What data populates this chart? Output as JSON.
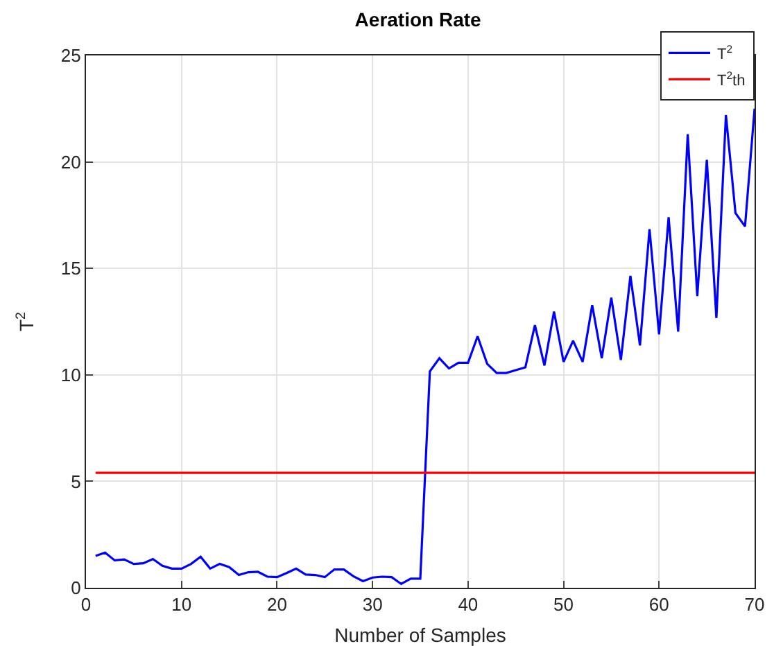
{
  "chart_data": {
    "type": "line",
    "title": "Aeration Rate",
    "xlabel": "Number of Samples",
    "ylabel": "T$^{2}$",
    "x": [
      1,
      2,
      3,
      4,
      5,
      6,
      7,
      8,
      9,
      10,
      11,
      12,
      13,
      14,
      15,
      16,
      17,
      18,
      19,
      20,
      21,
      22,
      23,
      24,
      25,
      26,
      27,
      28,
      29,
      30,
      31,
      32,
      33,
      34,
      35,
      36,
      37,
      38,
      39,
      40,
      41,
      42,
      43,
      44,
      45,
      46,
      47,
      48,
      49,
      50,
      51,
      52,
      53,
      54,
      55,
      56,
      57,
      58,
      59,
      60,
      61,
      62,
      63,
      64,
      65,
      66,
      67,
      68,
      69,
      70
    ],
    "series": [
      {
        "name": "T$^{2}$",
        "color": "#0000ff",
        "values": [
          1.5,
          1.65,
          1.29,
          1.33,
          1.12,
          1.15,
          1.35,
          1.03,
          0.9,
          0.9,
          1.12,
          1.46,
          0.9,
          1.12,
          0.97,
          0.6,
          0.73,
          0.75,
          0.52,
          0.5,
          0.69,
          0.9,
          0.62,
          0.6,
          0.5,
          0.86,
          0.86,
          0.54,
          0.31,
          0.48,
          0.52,
          0.5,
          0.18,
          0.43,
          0.43,
          10.16,
          10.78,
          10.3,
          10.57,
          10.57,
          11.81,
          10.52,
          10.09,
          10.09,
          10.22,
          10.35,
          12.33,
          10.44,
          12.97,
          10.61,
          11.6,
          10.61,
          13.27,
          10.78,
          13.62,
          10.7,
          14.65,
          11.38,
          16.84,
          11.9,
          17.4,
          12.03,
          21.3,
          13.7,
          20.1,
          12.67,
          22.2,
          17.6,
          16.97,
          22.5
        ]
      },
      {
        "name": "T$^{2}$th",
        "color": "#ff0000",
        "values": [
          5.4,
          5.4,
          5.4,
          5.4,
          5.4,
          5.4,
          5.4,
          5.4,
          5.4,
          5.4,
          5.4,
          5.4,
          5.4,
          5.4,
          5.4,
          5.4,
          5.4,
          5.4,
          5.4,
          5.4,
          5.4,
          5.4,
          5.4,
          5.4,
          5.4,
          5.4,
          5.4,
          5.4,
          5.4,
          5.4,
          5.4,
          5.4,
          5.4,
          5.4,
          5.4,
          5.4,
          5.4,
          5.4,
          5.4,
          5.4,
          5.4,
          5.4,
          5.4,
          5.4,
          5.4,
          5.4,
          5.4,
          5.4,
          5.4,
          5.4,
          5.4,
          5.4,
          5.4,
          5.4,
          5.4,
          5.4,
          5.4,
          5.4,
          5.4,
          5.4,
          5.4,
          5.4,
          5.4,
          5.4,
          5.4,
          5.4,
          5.4,
          5.4,
          5.4,
          5.4
        ]
      }
    ],
    "xlim": [
      0,
      70
    ],
    "xticks": [
      0,
      10,
      20,
      30,
      40,
      50,
      60,
      70
    ],
    "ylim": [
      0,
      25
    ],
    "yticks": [
      0,
      5,
      10,
      15,
      20,
      25
    ],
    "grid": true,
    "legend": "top right",
    "marker": "none",
    "line_style": "solid"
  }
}
